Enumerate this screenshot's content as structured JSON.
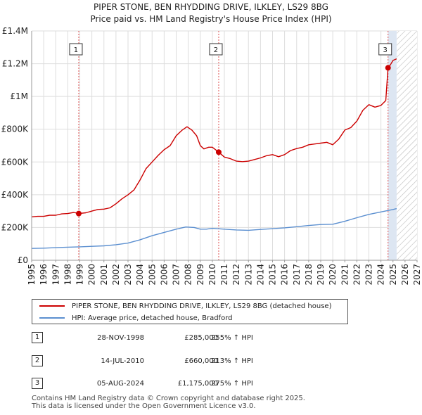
{
  "header": {
    "title": "PIPER STONE, BEN RHYDDING DRIVE, ILKLEY, LS29 8BG",
    "subtitle": "Price paid vs. HM Land Registry's House Price Index (HPI)"
  },
  "colors": {
    "property": "#cc0000",
    "hpi": "#5b8fd0",
    "marker_line": "#e05555",
    "future_shade": "#dde6f2"
  },
  "chart_data": {
    "type": "line",
    "xlim": [
      1995,
      2027
    ],
    "ylim": [
      0,
      1400000
    ],
    "x_ticks": [
      "1995",
      "1996",
      "1997",
      "1998",
      "1999",
      "2000",
      "2001",
      "2002",
      "2003",
      "2004",
      "2005",
      "2006",
      "2007",
      "2008",
      "2009",
      "2010",
      "2011",
      "2012",
      "2013",
      "2014",
      "2015",
      "2016",
      "2017",
      "2018",
      "2019",
      "2020",
      "2021",
      "2022",
      "2023",
      "2024",
      "2025",
      "2026",
      "2027"
    ],
    "y_ticks": [
      {
        "value": 0,
        "label": "£0"
      },
      {
        "value": 200000,
        "label": "£200K"
      },
      {
        "value": 400000,
        "label": "£400K"
      },
      {
        "value": 600000,
        "label": "£600K"
      },
      {
        "value": 800000,
        "label": "£800K"
      },
      {
        "value": 1000000,
        "label": "£1M"
      },
      {
        "value": 1200000,
        "label": "£1.2M"
      },
      {
        "value": 1400000,
        "label": "£1.4M"
      }
    ],
    "forecast_start": 2025.3,
    "series": [
      {
        "name": "PIPER STONE, BEN RHYDDING DRIVE, ILKLEY, LS29 8BG (detached house)",
        "color": "#cc0000",
        "x": [
          1995.0,
          1995.5,
          1996.0,
          1996.5,
          1997.0,
          1997.5,
          1998.0,
          1998.5,
          1998.91,
          1999.5,
          2000.0,
          2000.5,
          2001.0,
          2001.5,
          2002.0,
          2002.5,
          2003.0,
          2003.5,
          2004.0,
          2004.5,
          2005.0,
          2005.5,
          2006.0,
          2006.5,
          2007.0,
          2007.5,
          2007.9,
          2008.3,
          2008.7,
          2009.0,
          2009.3,
          2009.7,
          2010.0,
          2010.53,
          2011.0,
          2011.5,
          2012.0,
          2012.5,
          2013.0,
          2013.5,
          2014.0,
          2014.5,
          2015.0,
          2015.5,
          2016.0,
          2016.5,
          2017.0,
          2017.5,
          2018.0,
          2018.5,
          2019.0,
          2019.5,
          2020.0,
          2020.5,
          2021.0,
          2021.5,
          2022.0,
          2022.5,
          2023.0,
          2023.5,
          2024.0,
          2024.4,
          2024.59,
          2024.8,
          2025.0,
          2025.3
        ],
        "y": [
          265000,
          268000,
          268000,
          275000,
          275000,
          283000,
          285000,
          292000,
          285000,
          290000,
          300000,
          310000,
          312000,
          320000,
          345000,
          375000,
          400000,
          430000,
          490000,
          560000,
          600000,
          640000,
          675000,
          700000,
          760000,
          795000,
          815000,
          795000,
          760000,
          700000,
          680000,
          690000,
          690000,
          660000,
          630000,
          620000,
          605000,
          602000,
          605000,
          615000,
          625000,
          638000,
          645000,
          632000,
          645000,
          670000,
          682000,
          690000,
          705000,
          710000,
          715000,
          720000,
          705000,
          740000,
          795000,
          810000,
          850000,
          915000,
          950000,
          935000,
          945000,
          975000,
          1175000,
          1195000,
          1220000,
          1230000
        ],
        "sales": [
          {
            "x": 1998.91,
            "y": 285000,
            "label": "1"
          },
          {
            "x": 2010.53,
            "y": 660000,
            "label": "2"
          },
          {
            "x": 2024.59,
            "y": 1175000,
            "label": "3"
          }
        ]
      },
      {
        "name": "HPI: Average price, detached house, Bradford",
        "color": "#5b8fd0",
        "x": [
          1995.0,
          1996.0,
          1997.0,
          1998.0,
          1999.0,
          2000.0,
          2001.0,
          2002.0,
          2003.0,
          2004.0,
          2005.0,
          2006.0,
          2007.0,
          2007.8,
          2008.5,
          2009.0,
          2009.5,
          2010.0,
          2011.0,
          2012.0,
          2013.0,
          2014.0,
          2015.0,
          2016.0,
          2017.0,
          2018.0,
          2019.0,
          2020.0,
          2021.0,
          2022.0,
          2023.0,
          2024.0,
          2025.0,
          2025.3
        ],
        "y": [
          72000,
          74000,
          77000,
          80000,
          82000,
          85000,
          88000,
          95000,
          105000,
          125000,
          150000,
          170000,
          190000,
          203000,
          200000,
          190000,
          190000,
          195000,
          190000,
          185000,
          183000,
          188000,
          193000,
          198000,
          205000,
          212000,
          218000,
          220000,
          238000,
          260000,
          280000,
          295000,
          310000,
          315000
        ]
      }
    ]
  },
  "legend": {
    "property_label": "PIPER STONE, BEN RHYDDING DRIVE, ILKLEY, LS29 8BG (detached house)",
    "hpi_label": "HPI: Average price, detached house, Bradford"
  },
  "transactions": [
    {
      "num": "1",
      "date": "28-NOV-1998",
      "price": "£285,000",
      "hpi": "255% ↑ HPI"
    },
    {
      "num": "2",
      "date": "14-JUL-2010",
      "price": "£660,000",
      "hpi": "213% ↑ HPI"
    },
    {
      "num": "3",
      "date": "05-AUG-2024",
      "price": "£1,175,000",
      "hpi": "275% ↑ HPI"
    }
  ],
  "footer": {
    "line1": "Contains HM Land Registry data © Crown copyright and database right 2025.",
    "line2": "This data is licensed under the Open Government Licence v3.0."
  }
}
